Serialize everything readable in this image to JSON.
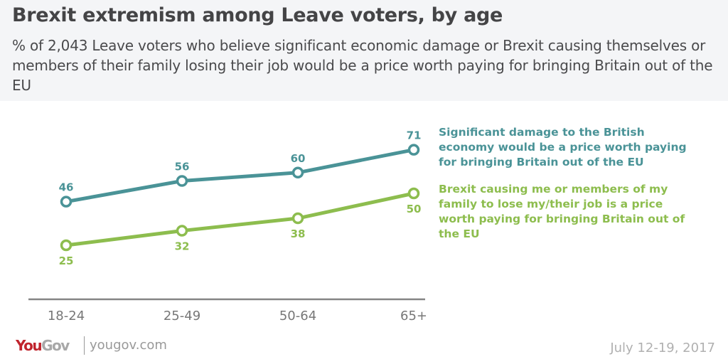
{
  "header": {
    "title": "Brexit extremism among Leave voters, by age",
    "subtitle": "% of 2,043 Leave voters who believe significant economic damage or Brexit causing themselves or members of their family losing their job would be a price worth paying for bringing Britain out of the EU"
  },
  "chart_data": {
    "type": "line",
    "title": "Brexit extremism among Leave voters, by age",
    "xlabel": "",
    "ylabel": "",
    "categories": [
      "18-24",
      "25-49",
      "50-64",
      "65+"
    ],
    "ylim": [
      0,
      80
    ],
    "grid": false,
    "legend_position": "right",
    "series": [
      {
        "name": "Significant damage to the British economy would be a price worth paying for bringing Britain out of the EU",
        "color": "#4a9397",
        "values": [
          46,
          56,
          60,
          71
        ],
        "label_position": "above"
      },
      {
        "name": "Brexit causing me or members of my family to lose my/their job is a price worth paying for bringing Britain out of the EU",
        "color": "#8dbd4e",
        "values": [
          25,
          32,
          38,
          50
        ],
        "label_position": "below"
      }
    ]
  },
  "footer": {
    "logo_you": "You",
    "logo_gov": "Gov",
    "url": "yougov.com",
    "date": "July 12-19, 2017"
  }
}
